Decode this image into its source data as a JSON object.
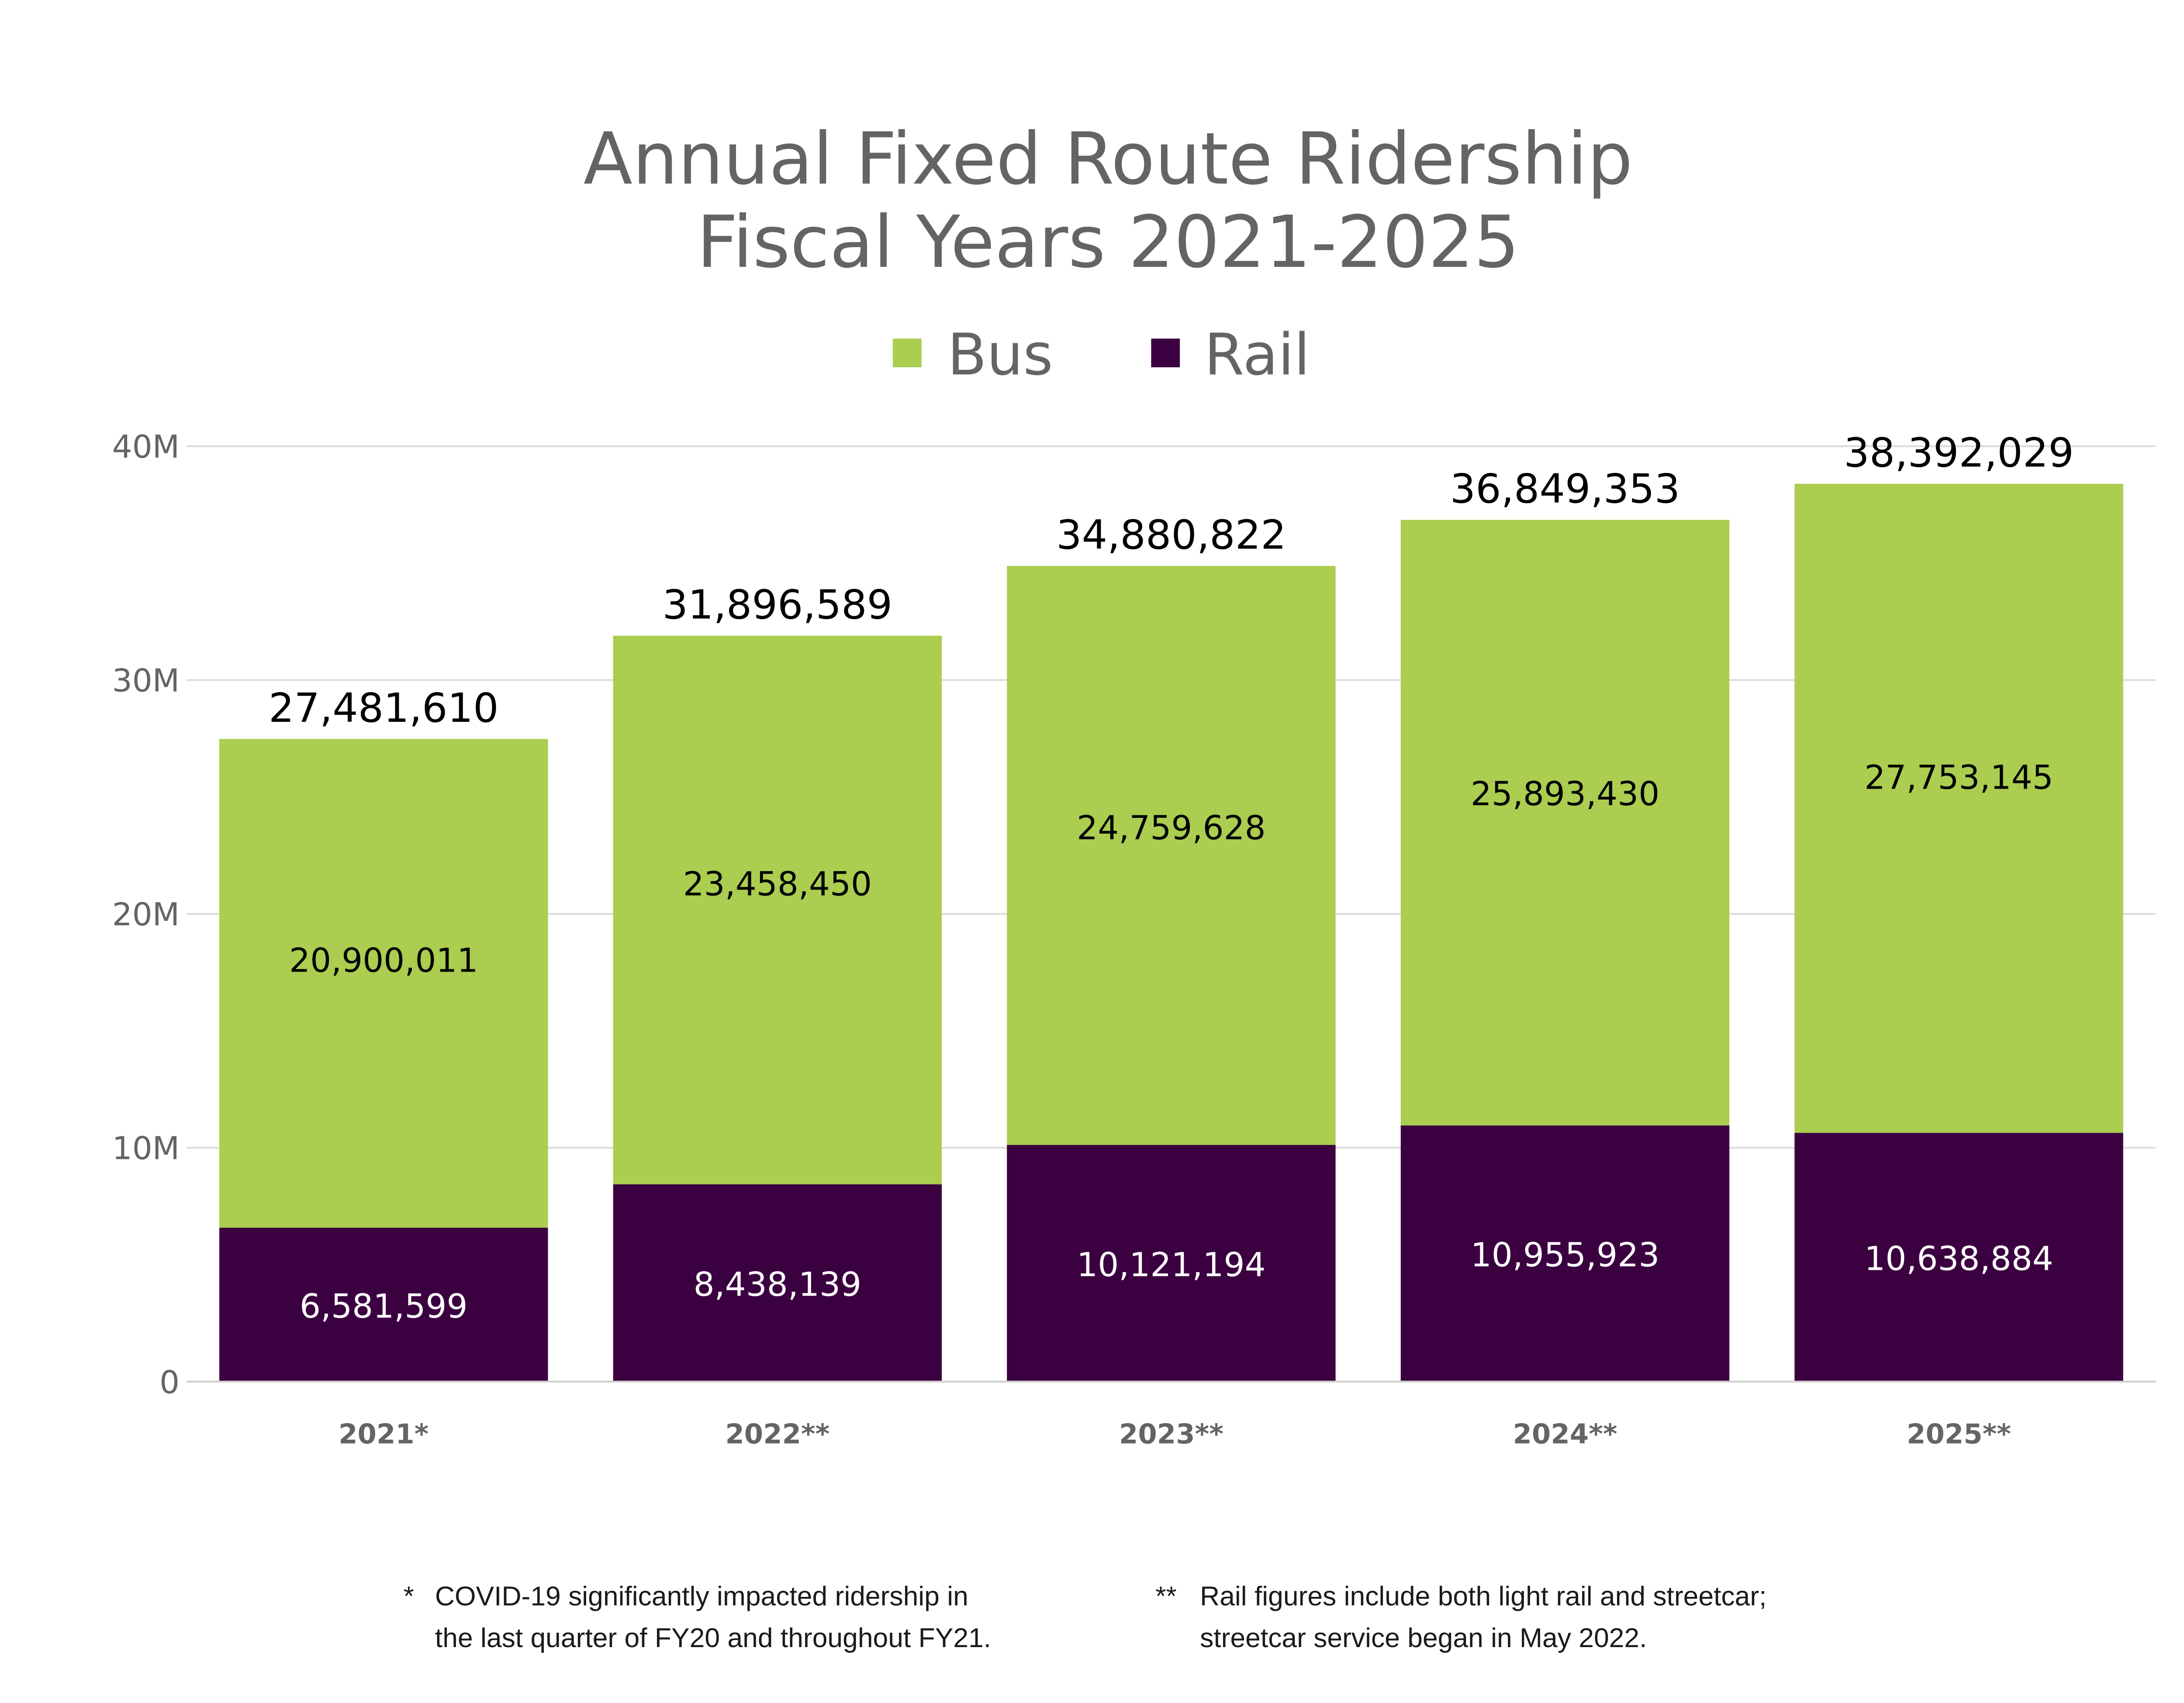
{
  "chart_data": {
    "type": "bar",
    "stacked": true,
    "title": "Annual Fixed Route Ridership",
    "subtitle": "Fiscal Years 2021-2025",
    "categories": [
      "2021*",
      "2022**",
      "2023**",
      "2024**",
      "2025**"
    ],
    "series": [
      {
        "name": "Rail",
        "color": "#3b0040",
        "label_color": "#ffffff",
        "values": [
          6581599,
          8438139,
          10121194,
          10955923,
          10638884
        ],
        "labels": [
          "6,581,599",
          "8,438,139",
          "10,121,194",
          "10,955,923",
          "10,638,884"
        ]
      },
      {
        "name": "Bus",
        "color": "#abcd50",
        "label_color": "#000000",
        "values": [
          20900011,
          23458450,
          24759628,
          25893430,
          27753145
        ],
        "labels": [
          "20,900,011",
          "23,458,450",
          "24,759,628",
          "25,893,430",
          "27,753,145"
        ]
      }
    ],
    "totals": [
      "27,481,610",
      "31,896,589",
      "34,880,822",
      "36,849,353",
      "38,392,029"
    ],
    "ylim": [
      0,
      40000000
    ],
    "yticks": [
      0,
      10000000,
      20000000,
      30000000,
      40000000
    ],
    "ytick_labels": [
      "0",
      "10M",
      "20M",
      "30M",
      "40M"
    ],
    "grid": true,
    "legend": {
      "placement": "top-center",
      "order": [
        "Bus",
        "Rail"
      ]
    },
    "xlabel": "",
    "ylabel": ""
  },
  "footnotes": [
    {
      "marker": "*",
      "lines": [
        "COVID-19 significantly impacted ridership in",
        "the last quarter of FY20 and throughout FY21."
      ]
    },
    {
      "marker": "**",
      "lines": [
        "Rail figures include both light rail and streetcar;",
        "streetcar service began in May 2022."
      ]
    }
  ]
}
